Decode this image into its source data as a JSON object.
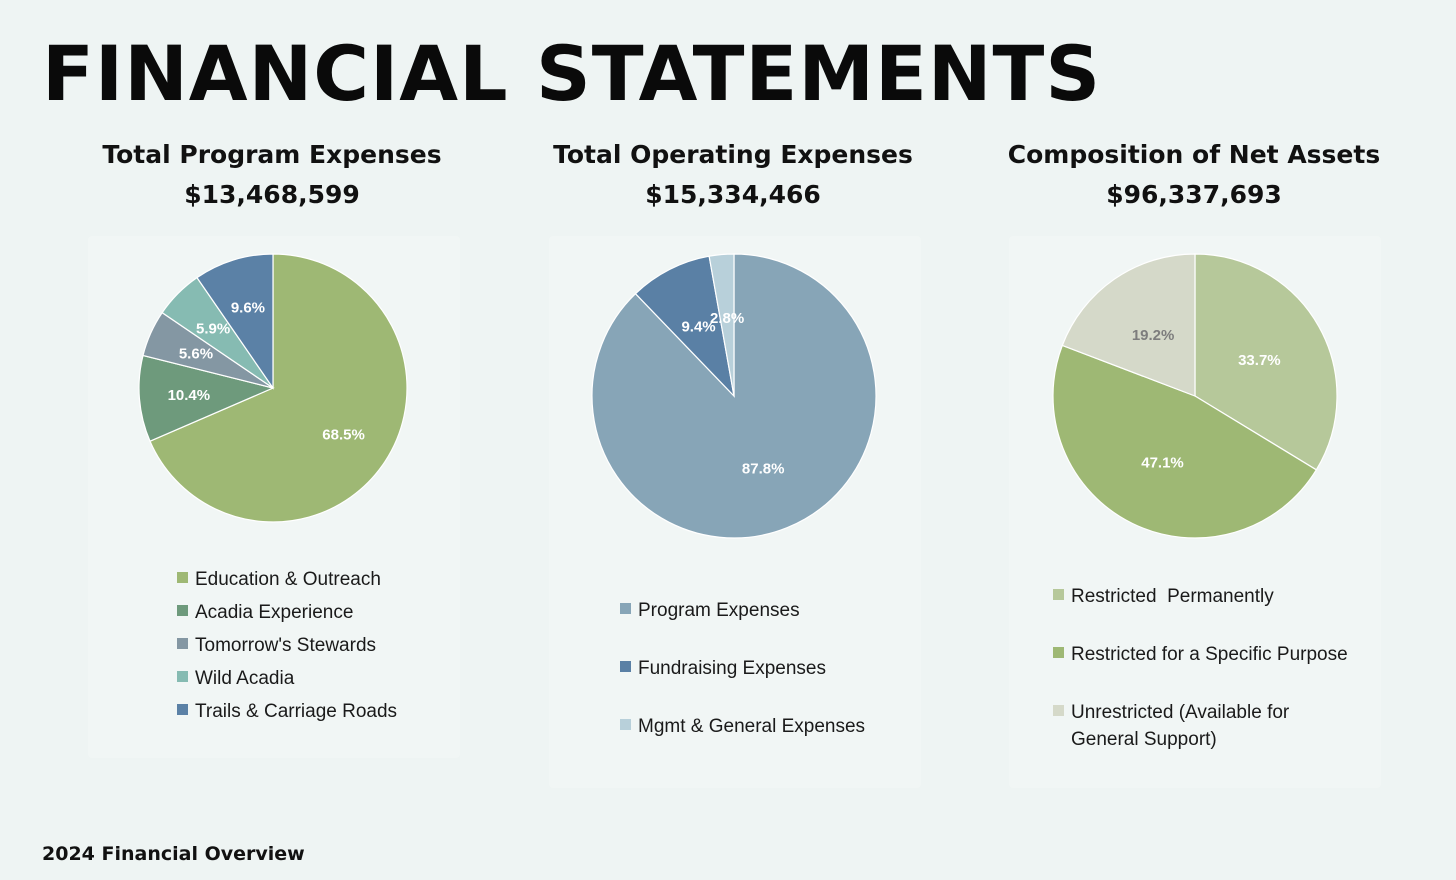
{
  "header": {
    "title": "FINANCIAL STATEMENTS"
  },
  "footer": {
    "text": "2024 Financial Overview"
  },
  "chart_data": [
    {
      "type": "pie",
      "title": "Total Program Expenses",
      "total": "$13,468,599",
      "slices": [
        {
          "label": "Education & Outreach",
          "value": 68.5,
          "display": "68.5%",
          "color": "#9eb874",
          "text_color": "#ffffff"
        },
        {
          "label": "Acadia Experience",
          "value": 10.4,
          "display": "10.4%",
          "color": "#6e9a7c",
          "text_color": "#ffffff"
        },
        {
          "label": "Tomorrow's Stewards",
          "value": 5.6,
          "display": "5.6%",
          "color": "#8497a3",
          "text_color": "#ffffff"
        },
        {
          "label": "Wild Acadia",
          "value": 5.9,
          "display": "5.9%",
          "color": "#86bbb2",
          "text_color": "#ffffff"
        },
        {
          "label": "Trails & Carriage Roads",
          "value": 9.6,
          "display": "9.6%",
          "color": "#5b81a6",
          "text_color": "#ffffff"
        }
      ]
    },
    {
      "type": "pie",
      "title": "Total Operating Expenses",
      "total": "$15,334,466",
      "slices": [
        {
          "label": "Program Expenses",
          "value": 87.8,
          "display": "87.8%",
          "color": "#87a5b7",
          "text_color": "#ffffff"
        },
        {
          "label": "Fundraising Expenses",
          "value": 9.4,
          "display": "9.4%",
          "color": "#5a80a5",
          "text_color": "#ffffff"
        },
        {
          "label": "Mgmt & General Expenses",
          "value": 2.8,
          "display": "2.8%",
          "color": "#b8d0da",
          "text_color": "#ffffff"
        }
      ]
    },
    {
      "type": "pie",
      "title": "Composition of Net Assets",
      "total": "$96,337,693",
      "slices": [
        {
          "label": "Restricted  Permanently",
          "value": 33.7,
          "display": "33.7%",
          "color": "#b6c89a",
          "text_color": "#ffffff"
        },
        {
          "label": "Restricted for a Specific Purpose",
          "value": 47.1,
          "display": "47.1%",
          "color": "#9eb874",
          "text_color": "#ffffff"
        },
        {
          "label": "Unrestricted (Available for General Support)",
          "value": 19.2,
          "display": "19.2%",
          "color": "#d5d9c9",
          "text_color": "#7d7d7d"
        }
      ]
    }
  ]
}
